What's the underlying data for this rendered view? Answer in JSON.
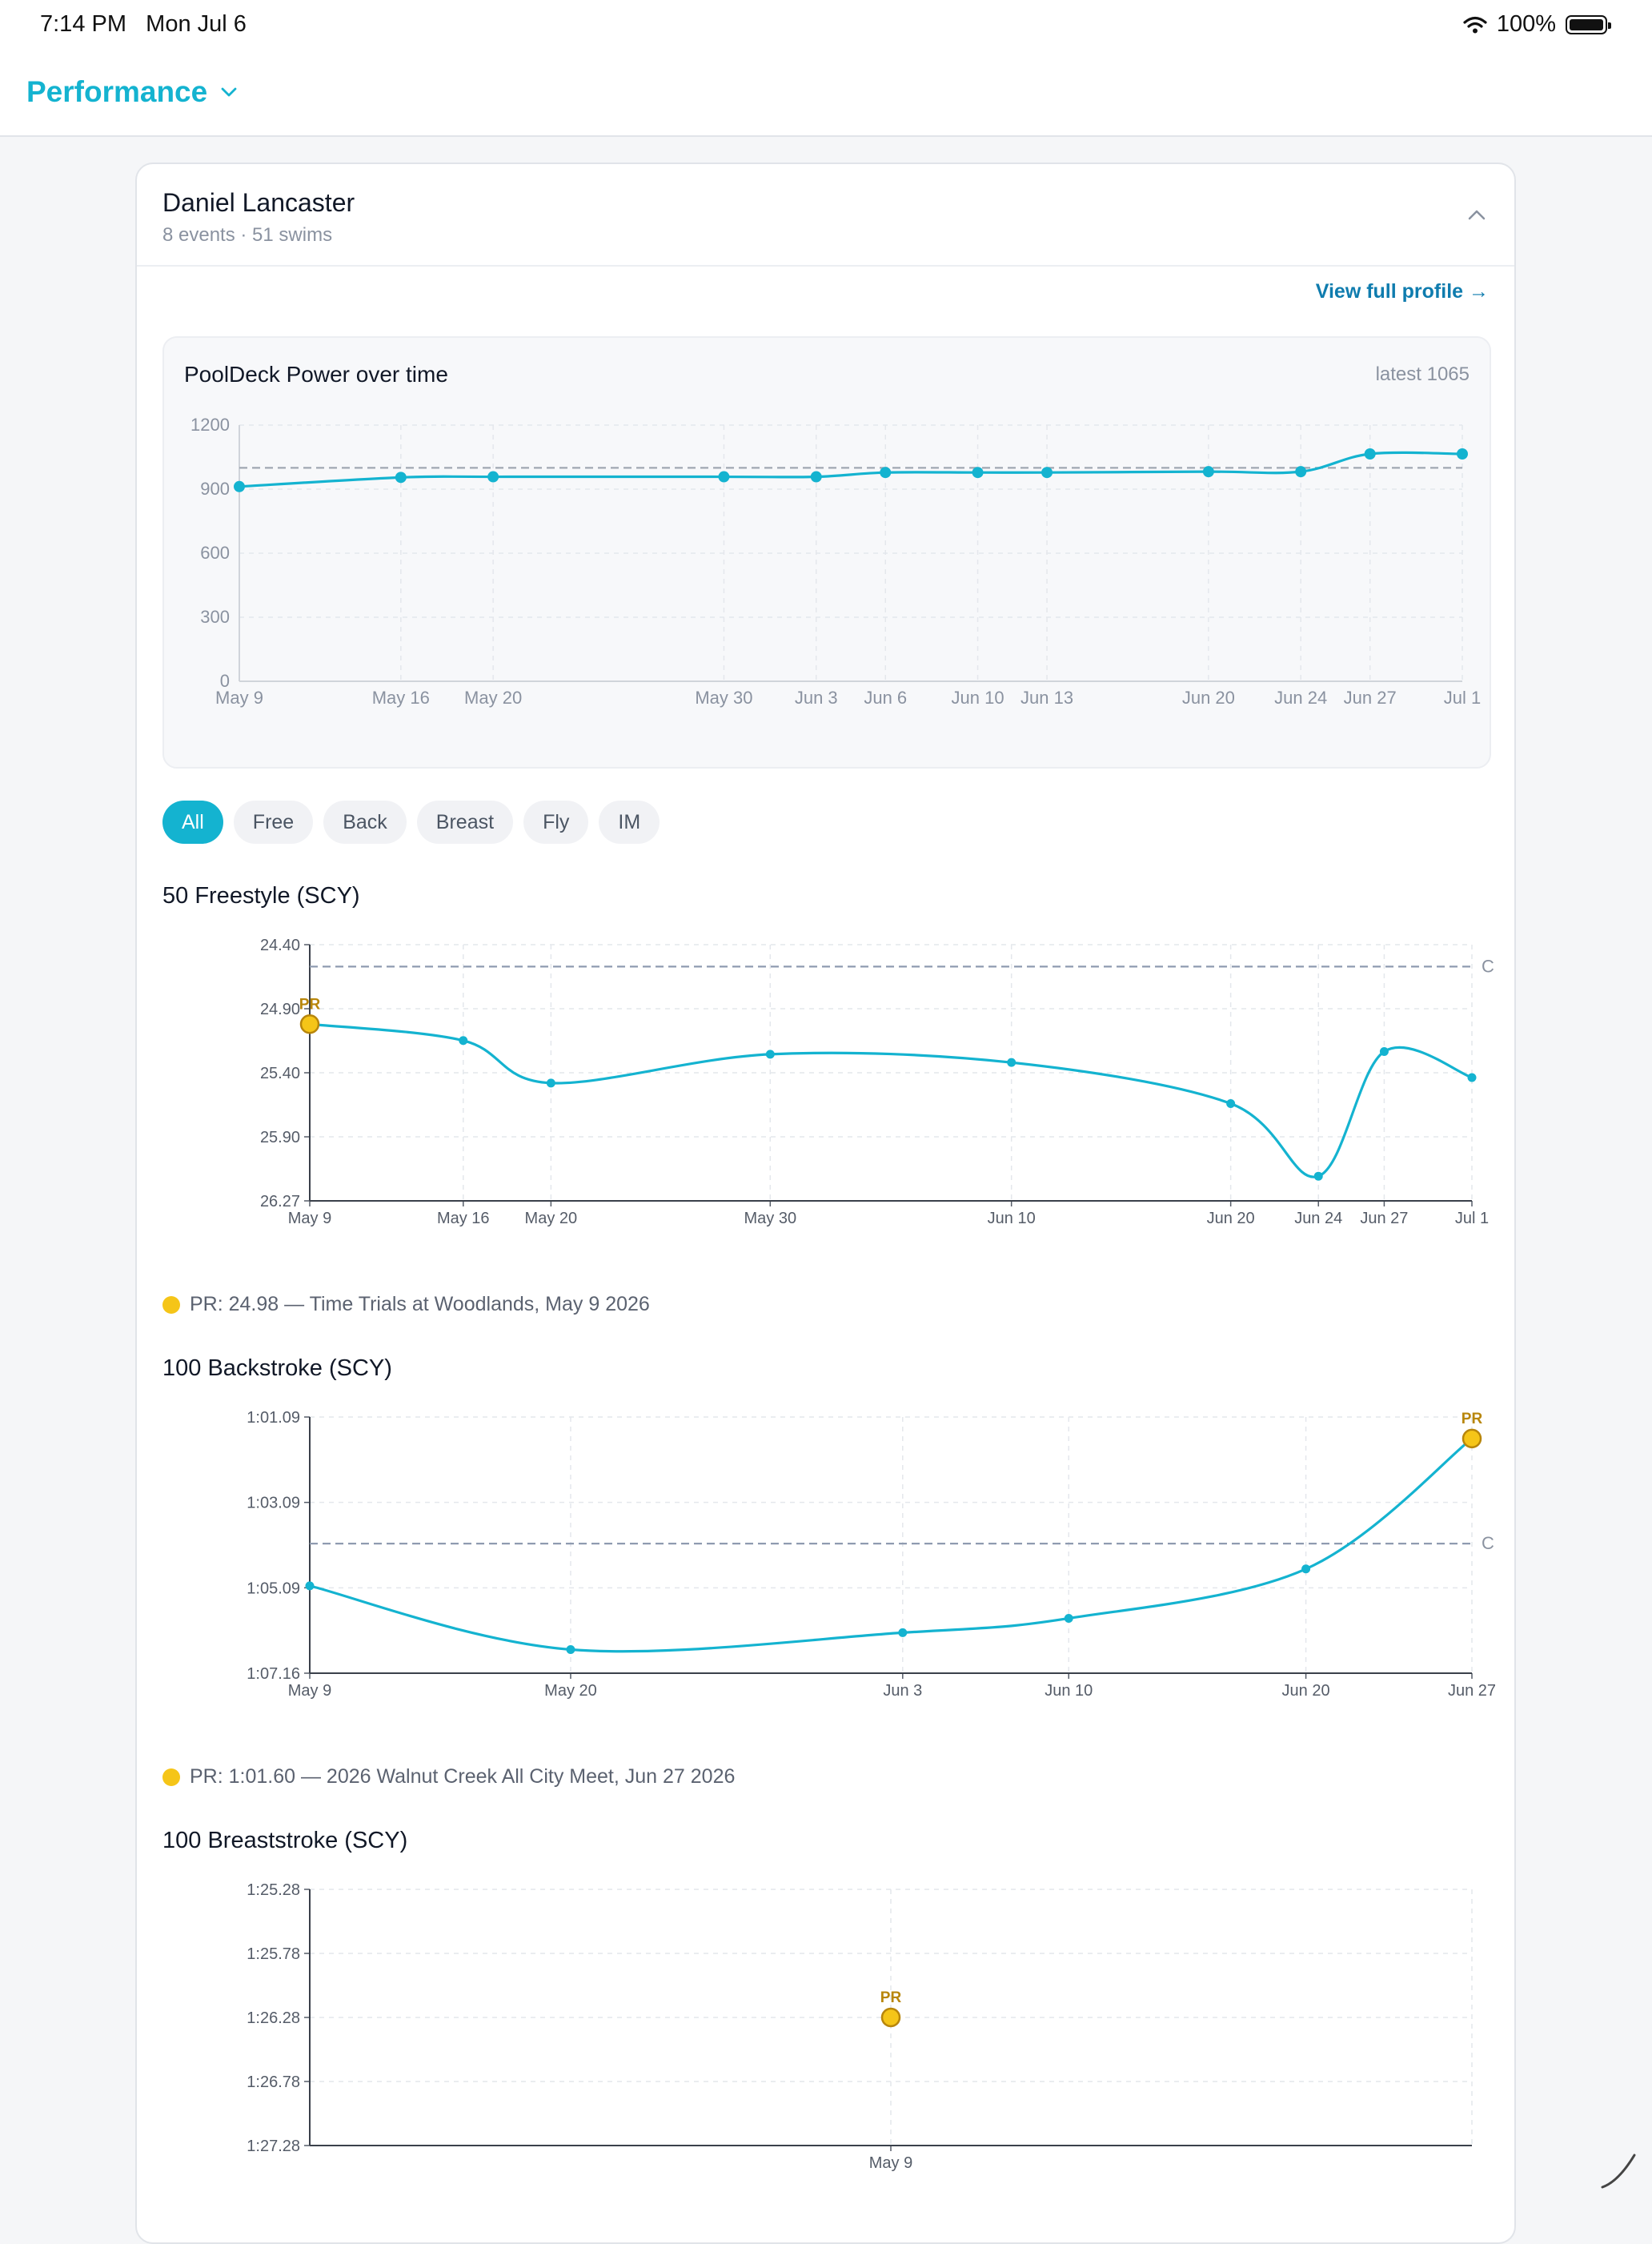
{
  "status": {
    "time": "7:14 PM",
    "date": "Mon Jul 6",
    "battery": "100%"
  },
  "header": {
    "title": "Performance"
  },
  "athlete": {
    "name": "Daniel Lancaster",
    "summary": "8 events · 51 swims",
    "view_profile": "View full profile →"
  },
  "power": {
    "title": "PoolDeck Power over time",
    "latest": "latest 1065"
  },
  "filters": [
    "All",
    "Free",
    "Back",
    "Breast",
    "Fly",
    "IM"
  ],
  "events": [
    {
      "title": "50 Freestyle (SCY)",
      "pr_text": "PR: 24.98  —  Time Trials at Woodlands, May 9 2026"
    },
    {
      "title": "100 Backstroke (SCY)",
      "pr_text": "PR: 1:01.60  —  2026 Walnut Creek All City Meet, Jun 27 2026"
    },
    {
      "title": "100 Breaststroke (SCY)"
    }
  ],
  "chart_data": [
    {
      "type": "line",
      "title": "PoolDeck Power over time",
      "x": [
        "May 9",
        "May 16",
        "May 20",
        "May 30",
        "Jun 3",
        "Jun 6",
        "Jun 10",
        "Jun 13",
        "Jun 20",
        "Jun 24",
        "Jun 27",
        "Jul 1"
      ],
      "x_days": [
        0,
        7,
        11,
        21,
        25,
        28,
        32,
        35,
        42,
        46,
        49,
        53
      ],
      "series": [
        {
          "values": [
            912,
            955,
            958,
            958,
            958,
            978,
            978,
            978,
            982,
            982,
            1065,
            1065
          ]
        }
      ],
      "ylim": [
        0,
        1200
      ],
      "yticks": [
        "0",
        "300",
        "600",
        "900",
        "1200"
      ],
      "reference_line": 1000,
      "grid": true,
      "color": "#14b3d0"
    },
    {
      "type": "line",
      "title": "50 Freestyle (SCY)",
      "x": [
        "May 9",
        "May 16",
        "May 20",
        "May 30",
        "Jun 10",
        "Jun 20",
        "Jun 24",
        "Jun 27",
        "Jul 1"
      ],
      "x_days": [
        0,
        7,
        11,
        21,
        32,
        42,
        46,
        49,
        53
      ],
      "series": [
        {
          "values": [
            24.98,
            25.1,
            25.41,
            25.2,
            25.26,
            25.56,
            26.09,
            25.18,
            25.37
          ]
        }
      ],
      "ylim": [
        24.4,
        26.27
      ],
      "y_inverted": true,
      "yticks": [
        "24.40",
        "24.90",
        "25.40",
        "25.90",
        "26.27"
      ],
      "reference_line": 24.56,
      "reference_label": "C",
      "pr": {
        "x": "May 9",
        "value": 24.98,
        "label": "PR"
      },
      "grid": true
    },
    {
      "type": "line",
      "title": "100 Backstroke (SCY)",
      "x": [
        "May 9",
        "May 20",
        "Jun 3",
        "Jun 10",
        "Jun 20",
        "Jun 27"
      ],
      "x_days": [
        0,
        11,
        25,
        32,
        42,
        49
      ],
      "series": [
        {
          "values": [
            65.09,
            66.6,
            66.2,
            65.86,
            64.69,
            61.6
          ]
        }
      ],
      "ylim": [
        61.09,
        67.16
      ],
      "y_inverted": true,
      "yticks": [
        "1:01.09",
        "1:03.09",
        "1:05.09",
        "1:07.16"
      ],
      "reference_line": 64.09,
      "reference_label": "C",
      "pr": {
        "x": "Jun 27",
        "value": 61.6,
        "label": "PR"
      },
      "grid": true
    },
    {
      "type": "scatter",
      "title": "100 Breaststroke (SCY)",
      "x": [
        "May 9"
      ],
      "series": [
        {
          "values": [
            86.28
          ]
        }
      ],
      "ylim": [
        85.28,
        87.28
      ],
      "y_inverted": true,
      "yticks": [
        "1:25.28",
        "1:25.78",
        "1:26.28",
        "1:26.78",
        "1:27.28"
      ],
      "pr": {
        "x": "May 9",
        "value": 86.28,
        "label": "PR"
      },
      "grid": true
    }
  ]
}
